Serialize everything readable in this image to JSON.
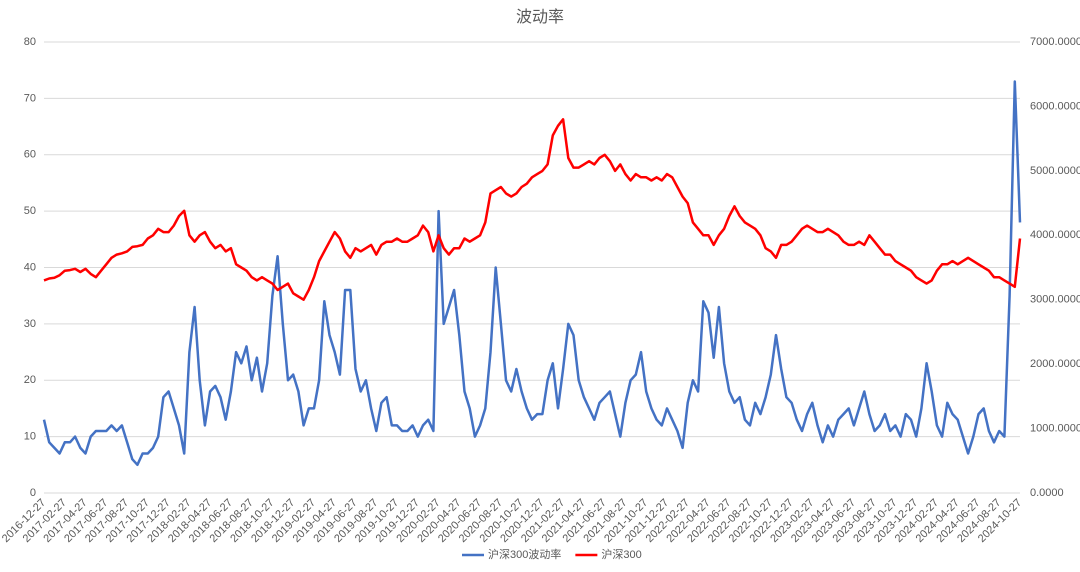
{
  "chart_data": {
    "type": "line",
    "title": "波动率",
    "categories": [
      "2016-12-27",
      null,
      null,
      null,
      "2017-02-27",
      null,
      null,
      null,
      "2017-04-27",
      null,
      null,
      null,
      "2017-06-27",
      null,
      null,
      null,
      "2017-08-27",
      null,
      null,
      null,
      "2017-10-27",
      null,
      null,
      null,
      "2017-12-27",
      null,
      null,
      null,
      "2018-02-27",
      null,
      null,
      null,
      "2018-04-27",
      null,
      null,
      null,
      "2018-06-27",
      null,
      null,
      null,
      "2018-08-27",
      null,
      null,
      null,
      "2018-10-27",
      null,
      null,
      null,
      "2018-12-27",
      null,
      null,
      null,
      "2019-02-27",
      null,
      null,
      null,
      "2019-04-27",
      null,
      null,
      null,
      "2019-06-27",
      null,
      null,
      null,
      "2019-08-27",
      null,
      null,
      null,
      "2019-10-27",
      null,
      null,
      null,
      "2019-12-27",
      null,
      null,
      null,
      "2020-02-27",
      null,
      null,
      null,
      "2020-04-27",
      null,
      null,
      null,
      "2020-06-27",
      null,
      null,
      null,
      "2020-08-27",
      null,
      null,
      null,
      "2020-10-27",
      null,
      null,
      null,
      "2020-12-27",
      null,
      null,
      null,
      "2021-02-27",
      null,
      null,
      null,
      "2021-04-27",
      null,
      null,
      null,
      "2021-06-27",
      null,
      null,
      null,
      "2021-08-27",
      null,
      null,
      null,
      "2021-10-27",
      null,
      null,
      null,
      "2021-12-27",
      null,
      null,
      null,
      "2022-02-27",
      null,
      null,
      null,
      "2022-04-27",
      null,
      null,
      null,
      "2022-06-27",
      null,
      null,
      null,
      "2022-08-27",
      null,
      null,
      null,
      "2022-10-27",
      null,
      null,
      null,
      "2022-12-27",
      null,
      null,
      null,
      "2023-02-27",
      null,
      null,
      null,
      "2023-04-27",
      null,
      null,
      null,
      "2023-06-27",
      null,
      null,
      null,
      "2023-08-27",
      null,
      null,
      null,
      "2023-10-27",
      null,
      null,
      null,
      "2023-12-27",
      null,
      null,
      null,
      "2024-02-27",
      null,
      null,
      null,
      "2024-04-27",
      null,
      null,
      null,
      "2024-06-27",
      null,
      null,
      null,
      "2024-08-27",
      null,
      null,
      null,
      "2024-10-27"
    ],
    "series": [
      {
        "name": "沪深300波动率",
        "color": "#4472c4",
        "axis": "y",
        "values": [
          13,
          9,
          8,
          7,
          9,
          9,
          10,
          8,
          7,
          10,
          11,
          11,
          11,
          12,
          11,
          12,
          9,
          6,
          5,
          7,
          7,
          8,
          10,
          17,
          18,
          15,
          12,
          7,
          25,
          33,
          20,
          12,
          18,
          19,
          17,
          13,
          18,
          25,
          23,
          26,
          20,
          24,
          18,
          23,
          35,
          42,
          30,
          20,
          21,
          18,
          12,
          15,
          15,
          20,
          34,
          28,
          25,
          21,
          36,
          36,
          22,
          18,
          20,
          15,
          11,
          16,
          17,
          12,
          12,
          11,
          11,
          12,
          10,
          12,
          13,
          11,
          50,
          30,
          33,
          36,
          28,
          18,
          15,
          10,
          12,
          15,
          25,
          40,
          30,
          20,
          18,
          22,
          18,
          15,
          13,
          14,
          14,
          20,
          23,
          15,
          22,
          30,
          28,
          20,
          17,
          15,
          13,
          16,
          17,
          18,
          14,
          10,
          16,
          20,
          21,
          25,
          18,
          15,
          13,
          12,
          15,
          13,
          11,
          8,
          16,
          20,
          18,
          34,
          32,
          24,
          33,
          23,
          18,
          16,
          17,
          13,
          12,
          16,
          14,
          17,
          21,
          28,
          22,
          17,
          16,
          13,
          11,
          14,
          16,
          12,
          9,
          12,
          10,
          13,
          14,
          15,
          12,
          15,
          18,
          14,
          11,
          12,
          14,
          11,
          12,
          10,
          14,
          13,
          10,
          15,
          23,
          18,
          12,
          10,
          16,
          14,
          13,
          10,
          7,
          10,
          14,
          15,
          11,
          9,
          11,
          10,
          35,
          73,
          48
        ]
      },
      {
        "name": "沪深300",
        "color": "#ff0000",
        "axis": "y2",
        "values": [
          3300,
          3330,
          3340,
          3380,
          3450,
          3460,
          3480,
          3430,
          3480,
          3400,
          3350,
          3450,
          3550,
          3650,
          3700,
          3720,
          3750,
          3820,
          3830,
          3850,
          3950,
          4000,
          4100,
          4050,
          4050,
          4150,
          4300,
          4380,
          4000,
          3900,
          4000,
          4050,
          3900,
          3800,
          3850,
          3750,
          3800,
          3550,
          3500,
          3450,
          3350,
          3300,
          3350,
          3300,
          3250,
          3150,
          3200,
          3250,
          3100,
          3050,
          3000,
          3150,
          3350,
          3600,
          3750,
          3900,
          4050,
          3950,
          3750,
          3650,
          3800,
          3750,
          3800,
          3850,
          3700,
          3850,
          3900,
          3900,
          3950,
          3900,
          3900,
          3950,
          4000,
          4150,
          4050,
          3750,
          4000,
          3800,
          3700,
          3800,
          3800,
          3950,
          3900,
          3950,
          4000,
          4200,
          4650,
          4700,
          4750,
          4650,
          4600,
          4650,
          4750,
          4800,
          4900,
          4950,
          5000,
          5100,
          5550,
          5700,
          5800,
          5200,
          5050,
          5050,
          5100,
          5150,
          5100,
          5200,
          5250,
          5150,
          5000,
          5100,
          4950,
          4850,
          4950,
          4900,
          4900,
          4850,
          4900,
          4850,
          4950,
          4900,
          4750,
          4600,
          4500,
          4200,
          4100,
          4000,
          4000,
          3850,
          4000,
          4100,
          4300,
          4450,
          4300,
          4200,
          4150,
          4100,
          4000,
          3800,
          3750,
          3650,
          3850,
          3850,
          3900,
          4000,
          4100,
          4150,
          4100,
          4050,
          4050,
          4100,
          4050,
          4000,
          3900,
          3850,
          3850,
          3900,
          3850,
          4000,
          3900,
          3800,
          3700,
          3700,
          3600,
          3550,
          3500,
          3450,
          3350,
          3300,
          3250,
          3300,
          3450,
          3550,
          3550,
          3600,
          3550,
          3600,
          3650,
          3600,
          3550,
          3500,
          3450,
          3350,
          3350,
          3300,
          3250,
          3200,
          3950
        ]
      }
    ],
    "ylim": [
      0,
      80
    ],
    "yticks": [
      0,
      10,
      20,
      30,
      40,
      50,
      60,
      70,
      80
    ],
    "y2lim": [
      0,
      7000
    ],
    "y2ticks": [
      {
        "value": 0,
        "label": "0.0000"
      },
      {
        "value": 1000,
        "label": "1000.0000"
      },
      {
        "value": 2000,
        "label": "2000.0000"
      },
      {
        "value": 3000,
        "label": "3000.0000"
      },
      {
        "value": 4000,
        "label": "4000.0000"
      },
      {
        "value": 5000,
        "label": "5000.0000"
      },
      {
        "value": 6000,
        "label": "6000.0000"
      },
      {
        "value": 7000,
        "label": "7000.0000"
      }
    ],
    "grid": true,
    "legend": "bottom"
  }
}
